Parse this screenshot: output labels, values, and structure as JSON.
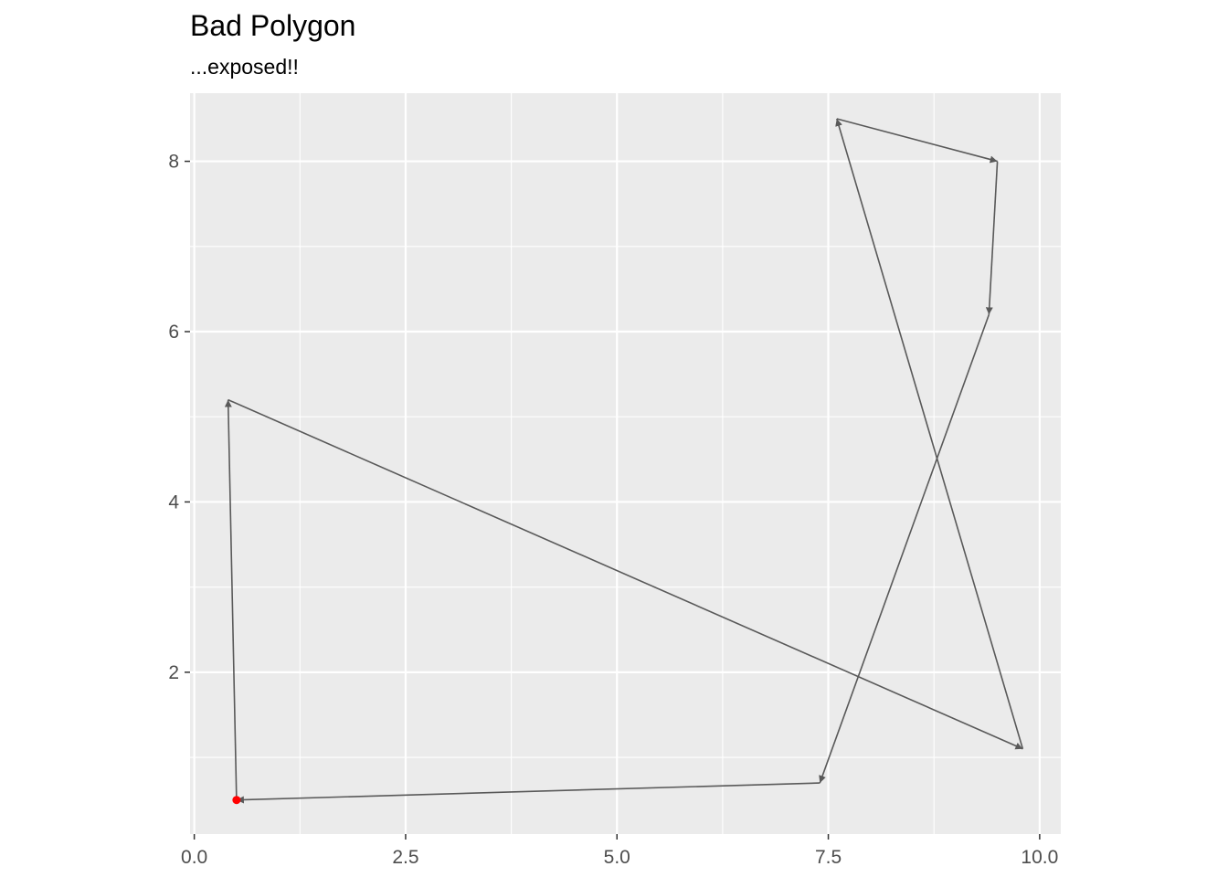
{
  "chart_data": {
    "type": "line",
    "title": "Bad Polygon",
    "subtitle": "...exposed!!",
    "xlabel": "",
    "ylabel": "",
    "xlim": [
      -0.05,
      10.25
    ],
    "ylim": [
      0.1,
      8.8
    ],
    "x_ticks": [
      {
        "value": 0.0,
        "label": "0.0"
      },
      {
        "value": 2.5,
        "label": "2.5"
      },
      {
        "value": 5.0,
        "label": "5.0"
      },
      {
        "value": 7.5,
        "label": "7.5"
      },
      {
        "value": 10.0,
        "label": "10.0"
      }
    ],
    "y_ticks": [
      {
        "value": 2,
        "label": "2"
      },
      {
        "value": 4,
        "label": "4"
      },
      {
        "value": 6,
        "label": "6"
      },
      {
        "value": 8,
        "label": "8"
      }
    ],
    "x_minor": [
      1.25,
      3.75,
      6.25,
      8.75
    ],
    "y_minor": [
      1,
      3,
      5,
      7
    ],
    "grid": true,
    "path": {
      "arrows": true,
      "x": [
        0.5,
        0.4,
        9.8,
        7.6,
        9.5,
        9.4,
        7.4,
        0.5
      ],
      "y": [
        0.5,
        5.2,
        1.1,
        8.5,
        8.0,
        6.2,
        0.7,
        0.5
      ]
    },
    "start_point": {
      "x": 0.5,
      "y": 0.5
    },
    "colors": {
      "panel": "#ebebeb",
      "grid": "#ffffff",
      "line": "#595959",
      "start_point": "#ff0000",
      "tick": "#4d4d4d"
    }
  }
}
